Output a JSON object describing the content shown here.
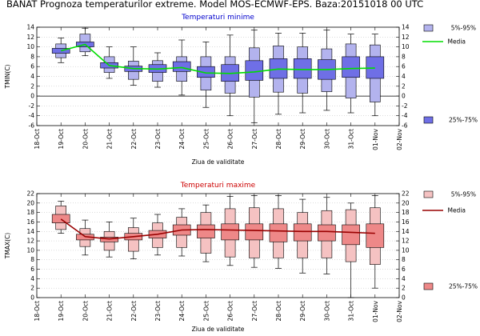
{
  "page": {
    "title": "BANAT  Prognoza temperaturilor extreme.  Model MOS-ECMWF-EPS. Baza:20151018 00 UTC"
  },
  "chart_data": [
    {
      "type": "boxplot",
      "title": "Temperaturi minime",
      "title_color": "#0000cc",
      "xlabel": "Ziua de validitate",
      "ylabel": "TMIN(C)",
      "ylim": [
        -6,
        14
      ],
      "yticks": [
        -6,
        -4,
        -2,
        0,
        2,
        4,
        6,
        8,
        10,
        12,
        14
      ],
      "grid": true,
      "categories": [
        "18-Oct",
        "19-Oct",
        "20-Oct",
        "21-Oct",
        "22-Oct",
        "23-Oct",
        "24-Oct",
        "25-Oct",
        "26-Oct",
        "27-Oct",
        "28-Oct",
        "29-Oct",
        "30-Oct",
        "31-Oct",
        "01-Nov",
        "02-Nov"
      ],
      "legend": {
        "placement": "right",
        "outer_label": "5%-95%",
        "median_label": "Media",
        "inner_label": "25%-75%"
      },
      "colors": {
        "outer": "#b3b3ee",
        "inner": "#6f6fe6",
        "median_line": "#00dd00",
        "stroke": "#000000",
        "title": "#0000cc"
      },
      "series": [
        {
          "date": "19-Oct",
          "min": 6.8,
          "p5": 7.8,
          "p25": 8.7,
          "p75": 9.7,
          "p95": 10.6,
          "max": 11.8,
          "mean": 9.2
        },
        {
          "date": "20-Oct",
          "min": 8.2,
          "p5": 9.0,
          "p25": 10.0,
          "p75": 11.0,
          "p95": 12.6,
          "max": 13.8,
          "mean": 10.5
        },
        {
          "date": "21-Oct",
          "min": 3.6,
          "p5": 4.8,
          "p25": 5.7,
          "p75": 6.8,
          "p95": 8.0,
          "max": 10.0,
          "mean": 6.2
        },
        {
          "date": "22-Oct",
          "min": 2.2,
          "p5": 3.4,
          "p25": 5.0,
          "p75": 6.1,
          "p95": 7.1,
          "max": 10.0,
          "mean": 5.6
        },
        {
          "date": "23-Oct",
          "min": 1.8,
          "p5": 3.0,
          "p25": 4.8,
          "p75": 6.4,
          "p95": 7.2,
          "max": 8.8,
          "mean": 5.5
        },
        {
          "date": "24-Oct",
          "min": 0.2,
          "p5": 3.0,
          "p25": 5.0,
          "p75": 7.0,
          "p95": 8.0,
          "max": 11.4,
          "mean": 5.8
        },
        {
          "date": "25-Oct",
          "min": -2.3,
          "p5": 1.2,
          "p25": 3.8,
          "p75": 6.0,
          "p95": 8.0,
          "max": 11.0,
          "mean": 4.7
        },
        {
          "date": "26-Oct",
          "min": -4.0,
          "p5": 0.6,
          "p25": 3.0,
          "p75": 6.4,
          "p95": 8.0,
          "max": 12.4,
          "mean": 4.6
        },
        {
          "date": "27-Oct",
          "min": -5.4,
          "p5": -0.2,
          "p25": 3.2,
          "p75": 7.2,
          "p95": 9.8,
          "max": 13.4,
          "mean": 4.9
        },
        {
          "date": "28-Oct",
          "min": -3.7,
          "p5": 0.8,
          "p25": 3.6,
          "p75": 7.6,
          "p95": 10.2,
          "max": 12.8,
          "mean": 5.5
        },
        {
          "date": "29-Oct",
          "min": -3.4,
          "p5": 0.6,
          "p25": 3.6,
          "p75": 7.6,
          "p95": 10.0,
          "max": 12.8,
          "mean": 5.4
        },
        {
          "date": "30-Oct",
          "min": -2.9,
          "p5": 0.9,
          "p25": 3.4,
          "p75": 7.4,
          "p95": 9.6,
          "max": 13.4,
          "mean": 5.4
        },
        {
          "date": "31-Oct",
          "min": -3.4,
          "p5": -0.4,
          "p25": 3.8,
          "p75": 8.0,
          "p95": 10.6,
          "max": 12.6,
          "mean": 5.6
        },
        {
          "date": "01-Nov",
          "min": -4.0,
          "p5": -1.2,
          "p25": 3.6,
          "p75": 8.0,
          "p95": 10.4,
          "max": 12.6,
          "mean": 5.7
        }
      ]
    },
    {
      "type": "boxplot",
      "title": "Temperaturi maxime",
      "title_color": "#cc0000",
      "xlabel": "Ziua de validitate",
      "ylabel": "TMAX(C)",
      "ylim": [
        0,
        22
      ],
      "yticks": [
        0,
        2,
        4,
        6,
        8,
        10,
        12,
        14,
        16,
        18,
        20,
        22
      ],
      "grid": true,
      "categories": [
        "18-Oct",
        "19-Oct",
        "20-Oct",
        "21-Oct",
        "22-Oct",
        "23-Oct",
        "24-Oct",
        "25-Oct",
        "26-Oct",
        "27-Oct",
        "28-Oct",
        "29-Oct",
        "30-Oct",
        "31-Oct",
        "01-Nov",
        "02-Nov"
      ],
      "legend": {
        "placement": "right",
        "outer_label": "5%-95%",
        "median_label": "Media",
        "inner_label": "25%-75%"
      },
      "colors": {
        "outer": "#f5c2c2",
        "inner": "#ee8888",
        "median_line": "#990000",
        "stroke": "#000000",
        "title": "#cc0000"
      },
      "series": [
        {
          "date": "19-Oct",
          "min": 13.6,
          "p5": 14.4,
          "p25": 15.8,
          "p75": 17.6,
          "p95": 19.4,
          "max": 20.4,
          "mean": 16.6
        },
        {
          "date": "20-Oct",
          "min": 9.0,
          "p5": 10.8,
          "p25": 12.2,
          "p75": 13.4,
          "p95": 14.6,
          "max": 16.4,
          "mean": 12.9
        },
        {
          "date": "21-Oct",
          "min": 8.6,
          "p5": 10.0,
          "p25": 11.8,
          "p75": 12.8,
          "p95": 14.0,
          "max": 16.0,
          "mean": 12.4
        },
        {
          "date": "22-Oct",
          "min": 8.2,
          "p5": 9.8,
          "p25": 12.2,
          "p75": 13.6,
          "p95": 14.8,
          "max": 16.8,
          "mean": 12.9
        },
        {
          "date": "23-Oct",
          "min": 9.0,
          "p5": 10.6,
          "p25": 12.6,
          "p75": 14.2,
          "p95": 15.8,
          "max": 17.6,
          "mean": 13.4
        },
        {
          "date": "24-Oct",
          "min": 8.8,
          "p5": 10.6,
          "p25": 13.2,
          "p75": 15.4,
          "p95": 17.0,
          "max": 18.8,
          "mean": 14.3
        },
        {
          "date": "25-Oct",
          "min": 7.6,
          "p5": 9.4,
          "p25": 12.6,
          "p75": 15.4,
          "p95": 18.0,
          "max": 19.6,
          "mean": 14.4
        },
        {
          "date": "26-Oct",
          "min": 6.8,
          "p5": 8.6,
          "p25": 12.2,
          "p75": 15.6,
          "p95": 18.8,
          "max": 21.4,
          "mean": 14.3
        },
        {
          "date": "27-Oct",
          "min": 6.4,
          "p5": 8.4,
          "p25": 12.2,
          "p75": 15.6,
          "p95": 19.0,
          "max": 21.6,
          "mean": 14.2
        },
        {
          "date": "28-Oct",
          "min": 6.2,
          "p5": 8.4,
          "p25": 11.8,
          "p75": 15.6,
          "p95": 18.8,
          "max": 21.6,
          "mean": 14.1
        },
        {
          "date": "29-Oct",
          "min": 5.2,
          "p5": 8.4,
          "p25": 12.0,
          "p75": 15.6,
          "p95": 18.0,
          "max": 20.8,
          "mean": 14.0
        },
        {
          "date": "30-Oct",
          "min": 5.0,
          "p5": 8.4,
          "p25": 12.0,
          "p75": 15.4,
          "p95": 18.4,
          "max": 21.2,
          "mean": 14.0
        },
        {
          "date": "31-Oct",
          "min": 0.0,
          "p5": 7.6,
          "p25": 11.2,
          "p75": 15.4,
          "p95": 18.6,
          "max": 20.0,
          "mean": 13.8
        },
        {
          "date": "01-Nov",
          "min": 2.0,
          "p5": 7.0,
          "p25": 10.6,
          "p75": 15.6,
          "p95": 19.0,
          "max": 21.6,
          "mean": 13.6
        }
      ]
    }
  ]
}
